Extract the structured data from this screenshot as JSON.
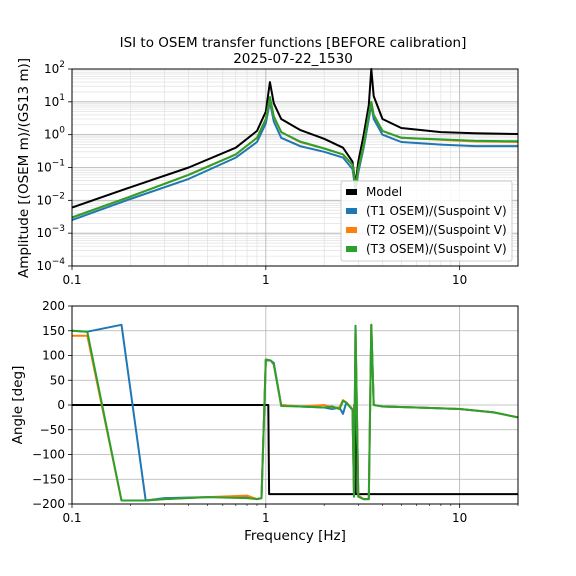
{
  "figure": {
    "title_line1": "ISI to OSEM transfer functions [BEFORE calibration]",
    "title_line2": "2025-07-22_1530"
  },
  "colors": {
    "Model": "#000000",
    "T1": "#1f77b4",
    "T2": "#ff7f0e",
    "T3": "#2ca02c",
    "grid_major": "#b0b0b0",
    "grid_minor": "#dcdcdc"
  },
  "chart_data": [
    {
      "type": "line",
      "id": "amplitude",
      "xscale": "log",
      "yscale": "log",
      "xlabel": "",
      "ylabel": "Amplitude [(OSEM m)/(GS13 m)]",
      "xlim": [
        0.1,
        20
      ],
      "ylim": [
        0.0001,
        100
      ],
      "grid": true,
      "legend_position": "lower-right",
      "x_tick_labels": [
        {
          "value": 0.1,
          "label": "0.1"
        },
        {
          "value": 1,
          "label": "1"
        },
        {
          "value": 10,
          "label": "10"
        }
      ],
      "y_tick_labels": [
        {
          "value": 0.0001,
          "base": "10",
          "exp": "−4"
        },
        {
          "value": 0.001,
          "base": "10",
          "exp": "−3"
        },
        {
          "value": 0.01,
          "base": "10",
          "exp": "−2"
        },
        {
          "value": 0.1,
          "base": "10",
          "exp": "−1"
        },
        {
          "value": 1,
          "base": "10",
          "exp": "0"
        },
        {
          "value": 10,
          "base": "10",
          "exp": "1"
        },
        {
          "value": 100,
          "base": "10",
          "exp": "2"
        }
      ],
      "series": [
        {
          "name": "Model",
          "key": "Model",
          "x": [
            0.1,
            0.2,
            0.4,
            0.7,
            0.9,
            1.0,
            1.05,
            1.1,
            1.2,
            1.5,
            2.0,
            2.5,
            2.8,
            2.9,
            3.0,
            3.2,
            3.4,
            3.5,
            3.6,
            4.0,
            5.0,
            8.0,
            12.0,
            20.0
          ],
          "y": [
            0.006,
            0.025,
            0.1,
            0.4,
            1.3,
            5.0,
            40.0,
            9.0,
            3.0,
            1.4,
            0.75,
            0.4,
            0.15,
            0.03,
            0.15,
            1.0,
            8.0,
            100.0,
            15.0,
            3.0,
            1.6,
            1.2,
            1.1,
            1.05
          ]
        },
        {
          "name": "(T1 OSEM)/(Suspoint V)",
          "key": "T1",
          "x": [
            0.1,
            0.2,
            0.4,
            0.7,
            0.9,
            1.0,
            1.05,
            1.1,
            1.2,
            1.5,
            2.0,
            2.5,
            2.8,
            2.9,
            3.0,
            3.2,
            3.4,
            3.5,
            3.6,
            4.0,
            5.0,
            8.0,
            12.0,
            20.0
          ],
          "y": [
            0.0025,
            0.011,
            0.045,
            0.2,
            0.6,
            2.2,
            10.0,
            2.5,
            0.8,
            0.45,
            0.3,
            0.2,
            0.09,
            0.02,
            0.07,
            0.4,
            3.0,
            8.0,
            3.0,
            1.0,
            0.6,
            0.5,
            0.45,
            0.45
          ]
        },
        {
          "name": "(T2 OSEM)/(Suspoint V)",
          "key": "T2",
          "x": [
            0.1,
            0.2,
            0.4,
            0.7,
            0.9,
            1.0,
            1.05,
            1.1,
            1.2,
            1.5,
            2.0,
            2.5,
            2.8,
            2.9,
            3.0,
            3.2,
            3.4,
            3.5,
            3.6,
            4.0,
            5.0,
            8.0,
            12.0,
            20.0
          ],
          "y": [
            0.003,
            0.013,
            0.06,
            0.25,
            0.8,
            3.0,
            13.0,
            3.5,
            1.2,
            0.6,
            0.38,
            0.25,
            0.12,
            0.025,
            0.09,
            0.5,
            4.0,
            10.0,
            4.0,
            1.3,
            0.8,
            0.7,
            0.62,
            0.6
          ]
        },
        {
          "name": "(T3 OSEM)/(Suspoint V)",
          "key": "T3",
          "x": [
            0.1,
            0.2,
            0.4,
            0.7,
            0.9,
            1.0,
            1.05,
            1.1,
            1.2,
            1.5,
            2.0,
            2.5,
            2.8,
            2.9,
            3.0,
            3.2,
            3.4,
            3.5,
            3.6,
            4.0,
            5.0,
            8.0,
            12.0,
            20.0
          ],
          "y": [
            0.003,
            0.013,
            0.06,
            0.25,
            0.8,
            3.0,
            14.0,
            3.6,
            1.2,
            0.62,
            0.38,
            0.25,
            0.12,
            0.025,
            0.09,
            0.5,
            4.0,
            10.0,
            4.0,
            1.3,
            0.8,
            0.72,
            0.65,
            0.63
          ]
        }
      ]
    },
    {
      "type": "line",
      "id": "phase",
      "xscale": "log",
      "yscale": "linear",
      "xlabel": "Frequency [Hz]",
      "ylabel": "Angle [deg]",
      "xlim": [
        0.1,
        20
      ],
      "ylim": [
        -200,
        200
      ],
      "grid": true,
      "x_tick_labels": [
        {
          "value": 0.1,
          "label": "0.1"
        },
        {
          "value": 1,
          "label": "1"
        },
        {
          "value": 10,
          "label": "10"
        }
      ],
      "y_tick_labels": [
        {
          "value": 200,
          "label": "200"
        },
        {
          "value": 150,
          "label": "150"
        },
        {
          "value": 100,
          "label": "100"
        },
        {
          "value": 50,
          "label": "50"
        },
        {
          "value": 0,
          "label": "0"
        },
        {
          "value": -50,
          "label": "−50"
        },
        {
          "value": -100,
          "label": "−100"
        },
        {
          "value": -150,
          "label": "−150"
        },
        {
          "value": -200,
          "label": "−200"
        }
      ],
      "series": [
        {
          "name": "Model",
          "key": "Model",
          "x": [
            0.1,
            1.03,
            1.04,
            1.1,
            2.85,
            2.86,
            2.9,
            2.91,
            3.5,
            3.55,
            20.0
          ],
          "y": [
            0,
            0,
            -180,
            -180,
            -180,
            0,
            0,
            -180,
            -180,
            -180,
            -180
          ]
        },
        {
          "name": "(T1 OSEM)/(Suspoint V)",
          "key": "T1",
          "x": [
            0.1,
            0.12,
            0.18,
            0.24,
            0.3,
            0.5,
            0.8,
            0.9,
            0.95,
            1.0,
            1.06,
            1.1,
            1.2,
            1.5,
            2.0,
            2.2,
            2.4,
            2.5,
            2.6,
            2.8,
            2.85,
            2.9,
            3.0,
            3.2,
            3.4,
            3.5,
            3.6,
            4.0,
            6.0,
            10.0,
            15.0,
            20.0
          ],
          "y": [
            150,
            148,
            162,
            -193,
            -188,
            -186,
            -185,
            -190,
            -188,
            90,
            90,
            85,
            0,
            -3,
            -5,
            -8,
            -5,
            -18,
            5,
            -10,
            -185,
            160,
            -185,
            -190,
            -190,
            162,
            0,
            -3,
            -5,
            -8,
            -15,
            -25
          ]
        },
        {
          "name": "(T2 OSEM)/(Suspoint V)",
          "key": "T2",
          "x": [
            0.1,
            0.12,
            0.18,
            0.24,
            0.3,
            0.5,
            0.8,
            0.9,
            0.95,
            1.0,
            1.06,
            1.1,
            1.2,
            1.5,
            2.0,
            2.2,
            2.4,
            2.5,
            2.6,
            2.8,
            2.85,
            2.9,
            3.0,
            3.2,
            3.4,
            3.5,
            3.6,
            4.0,
            6.0,
            10.0,
            15.0,
            20.0
          ],
          "y": [
            140,
            140,
            -193,
            -193,
            -190,
            -186,
            -183,
            -190,
            -188,
            92,
            90,
            82,
            0,
            -3,
            0,
            -5,
            -5,
            10,
            5,
            -8,
            -185,
            158,
            -183,
            -190,
            -190,
            162,
            0,
            -3,
            -5,
            -8,
            -15,
            -25
          ]
        },
        {
          "name": "(T3 OSEM)/(Suspoint V)",
          "key": "T3",
          "x": [
            0.1,
            0.12,
            0.18,
            0.24,
            0.3,
            0.5,
            0.8,
            0.9,
            0.95,
            1.0,
            1.06,
            1.1,
            1.2,
            1.5,
            2.0,
            2.2,
            2.4,
            2.5,
            2.6,
            2.8,
            2.85,
            2.9,
            3.0,
            3.2,
            3.4,
            3.5,
            3.6,
            4.0,
            6.0,
            10.0,
            15.0,
            20.0
          ],
          "y": [
            150,
            148,
            -193,
            -193,
            -190,
            -186,
            -188,
            -190,
            -188,
            92,
            90,
            82,
            -2,
            -3,
            -5,
            -3,
            -8,
            8,
            5,
            -10,
            -185,
            158,
            -185,
            -190,
            -190,
            162,
            0,
            -3,
            -5,
            -8,
            -15,
            -25
          ]
        }
      ]
    }
  ]
}
